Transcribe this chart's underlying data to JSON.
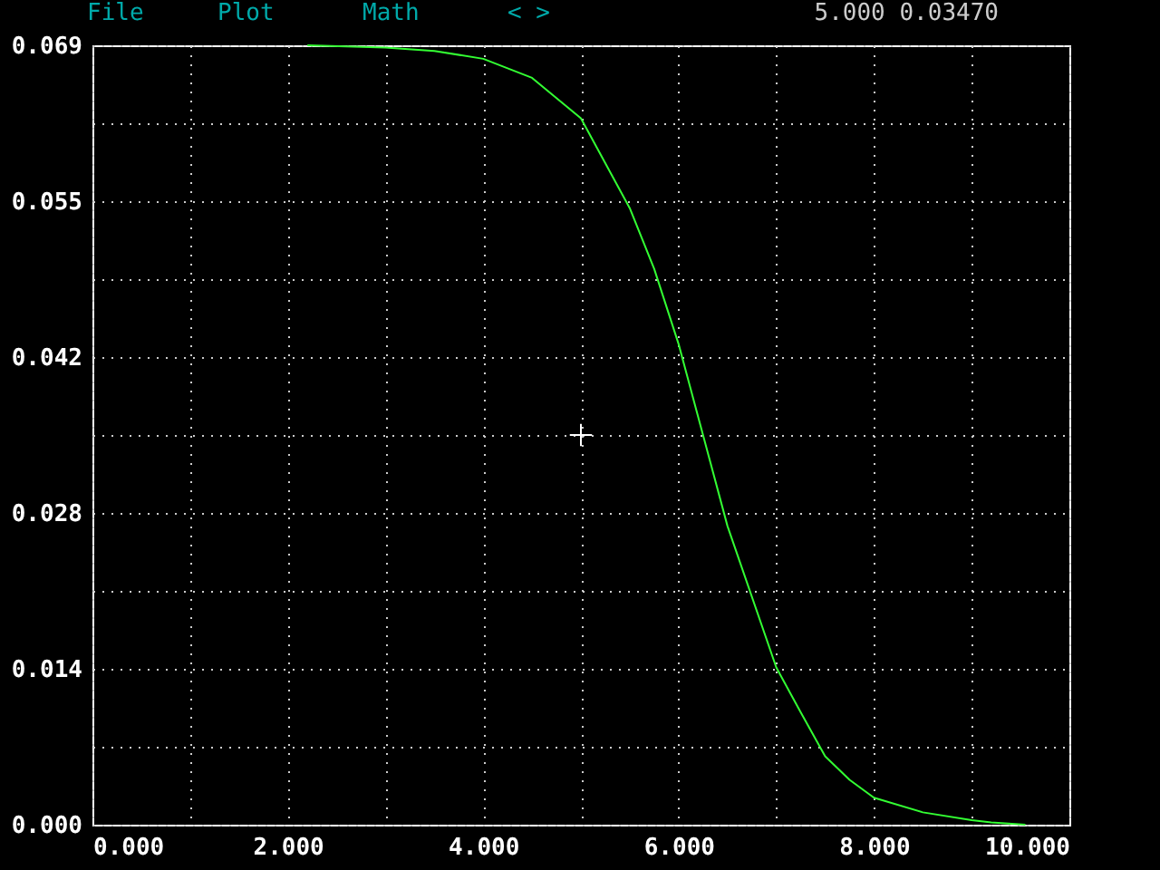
{
  "chart_data": {
    "type": "line",
    "x": [
      2.2,
      3.0,
      3.5,
      4.0,
      4.5,
      5.0,
      5.5,
      5.75,
      6.0,
      6.25,
      6.5,
      7.0,
      7.25,
      7.5,
      7.75,
      8.0,
      8.5,
      9.0,
      9.2,
      9.55
    ],
    "series": [
      {
        "color": "#33ff33",
        "values": [
          0.0694,
          0.0692,
          0.0689,
          0.0682,
          0.0665,
          0.0629,
          0.0549,
          0.0495,
          0.0428,
          0.0347,
          0.0266,
          0.014,
          0.01,
          0.0061,
          0.004,
          0.0024,
          0.0011,
          0.0004,
          0.0002,
          0.0
        ]
      },
      {
        "type": "scatter",
        "marker": "cross",
        "color": "#ffffff",
        "x": [
          5
        ],
        "values": [
          0.0347
        ]
      }
    ],
    "xlim": [
      0,
      10
    ],
    "xticks": [
      {
        "value": 0,
        "label": "0.000"
      },
      {
        "value": 1,
        "label": null
      },
      {
        "value": 2,
        "label": "2.000"
      },
      {
        "value": 3,
        "label": null
      },
      {
        "value": 4,
        "label": "4.000"
      },
      {
        "value": 5,
        "label": null
      },
      {
        "value": 6,
        "label": "6.000"
      },
      {
        "value": 7,
        "label": null
      },
      {
        "value": 8,
        "label": "8.000"
      },
      {
        "value": 9,
        "label": null
      },
      {
        "value": 10,
        "label": "10.000"
      }
    ],
    "ylim": [
      0,
      0.0694
    ],
    "yticks": [
      {
        "value": 0,
        "label": "0.000"
      },
      {
        "value": 0.00694,
        "label": null
      },
      {
        "value": 0.01388,
        "label": "0.014"
      },
      {
        "value": 0.02082,
        "label": null
      },
      {
        "value": 0.02776,
        "label": "0.028"
      },
      {
        "value": 0.0347,
        "label": null
      },
      {
        "value": 0.04164,
        "label": "0.042"
      },
      {
        "value": 0.04858,
        "label": null
      },
      {
        "value": 0.0555,
        "label": "0.055"
      },
      {
        "value": 0.06246,
        "label": null
      },
      {
        "value": 0.0694,
        "label": "0.069"
      }
    ],
    "grid": true,
    "marker": "none",
    "line_style": "solid",
    "annotations": [
      "File",
      "Plot",
      "Math",
      "< >",
      "5.000 0.03470"
    ]
  }
}
